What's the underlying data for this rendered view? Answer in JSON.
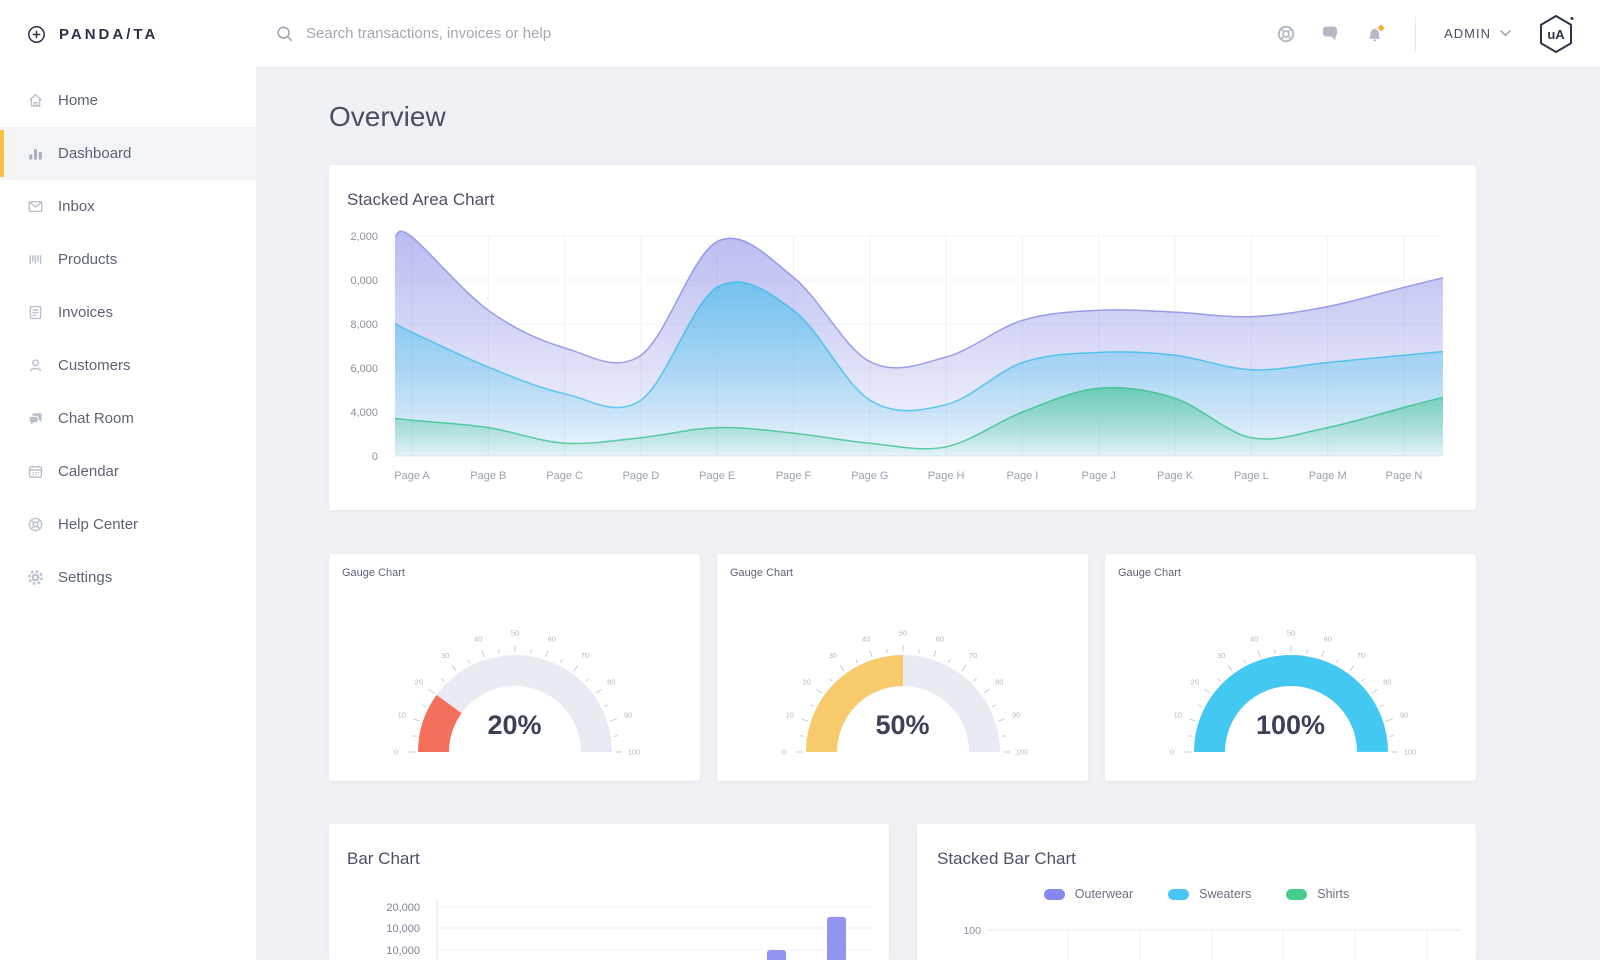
{
  "brand": {
    "name": "PANDA/TA"
  },
  "topbar": {
    "search_placeholder": "Search transactions, invoices or help",
    "icons": [
      "lifebuoy-icon",
      "chat-icon",
      "bell-icon"
    ],
    "notification_badge": true,
    "user_label": "ADMIN",
    "avatar_text": "uA"
  },
  "sidebar": {
    "items": [
      {
        "id": "home",
        "label": "Home",
        "icon": "home",
        "active": false
      },
      {
        "id": "dashboard",
        "label": "Dashboard",
        "icon": "dashboard",
        "active": true
      },
      {
        "id": "inbox",
        "label": "Inbox",
        "icon": "inbox",
        "active": false
      },
      {
        "id": "products",
        "label": "Products",
        "icon": "products",
        "active": false
      },
      {
        "id": "invoices",
        "label": "Invoices",
        "icon": "invoices",
        "active": false
      },
      {
        "id": "customers",
        "label": "Customers",
        "icon": "customers",
        "active": false
      },
      {
        "id": "chat-room",
        "label": "Chat Room",
        "icon": "chat-room",
        "active": false
      },
      {
        "id": "calendar",
        "label": "Calendar",
        "icon": "calendar",
        "active": false
      },
      {
        "id": "help-center",
        "label": "Help Center",
        "icon": "help-center",
        "active": false
      },
      {
        "id": "settings",
        "label": "Settings",
        "icon": "settings",
        "active": false
      }
    ]
  },
  "page": {
    "title": "Overview"
  },
  "colors": {
    "accent_yellow": "#f6c13c",
    "notification_dot": "#f5ab3f",
    "gauge_track": "#e9ebf3",
    "gauge_red": "#f4705d",
    "gauge_amber": "#f7ca6b",
    "gauge_cyan": "#43c8f1",
    "area_purple": "#7f84e3",
    "area_blue": "#2fbcea",
    "area_green": "#2fbf86",
    "bar_purple": "#9195f1"
  },
  "chart_data": [
    {
      "card": "stacked-area",
      "type": "area",
      "title": "Stacked Area Chart",
      "stacked": true,
      "grid": true,
      "ylim": [
        0,
        12000
      ],
      "y_tick_labels_visible": [
        "2,000",
        "0,000",
        "8,000",
        "6,000",
        "4,000",
        "0"
      ],
      "x_labels": [
        "Page A",
        "Page B",
        "Page C",
        "Page D",
        "Page E",
        "Page F",
        "Page G",
        "Page H",
        "Page I",
        "Page J",
        "Page K",
        "Page L",
        "Page M",
        "Page N"
      ],
      "series": [
        {
          "name": "green",
          "color": "#2fbf86",
          "values": [
            1950,
            1550,
            700,
            1000,
            1550,
            1250,
            700,
            500,
            2400,
            3700,
            3150,
            1000,
            1550,
            2650
          ]
        },
        {
          "name": "blue",
          "color": "#2fbcea",
          "values": [
            4800,
            3300,
            2700,
            2050,
            7650,
            6700,
            2350,
            2300,
            2700,
            1950,
            2350,
            3700,
            3550,
            2850
          ]
        },
        {
          "name": "purple",
          "color": "#7f84e3",
          "values": [
            5200,
            3100,
            2500,
            2450,
            2500,
            1800,
            2100,
            2600,
            2300,
            2300,
            2350,
            2900,
            3050,
            3700
          ]
        }
      ]
    },
    {
      "card": "gauge-1",
      "type": "gauge",
      "title": "Gauge Chart",
      "value": 20,
      "label": "20%",
      "min": 0,
      "max": 100,
      "tick_step": 10,
      "color": "#f4705d"
    },
    {
      "card": "gauge-2",
      "type": "gauge",
      "title": "Gauge Chart",
      "value": 50,
      "label": "50%",
      "min": 0,
      "max": 100,
      "tick_step": 10,
      "color": "#f7ca6b"
    },
    {
      "card": "gauge-3",
      "type": "gauge",
      "title": "Gauge Chart",
      "value": 100,
      "label": "100%",
      "min": 0,
      "max": 100,
      "tick_step": 10,
      "color": "#43c8f1"
    },
    {
      "card": "bar",
      "type": "bar",
      "title": "Bar Chart",
      "y_tick_labels_visible": [
        "20,000",
        "10,000",
        "10,000"
      ],
      "bar_color": "#9195f1",
      "visible_values": [
        10000,
        17700
      ]
    },
    {
      "card": "stacked-bar",
      "type": "bar",
      "stacked": true,
      "title": "Stacked Bar Chart",
      "legend": [
        {
          "name": "Outerwear",
          "color": "#8589ee"
        },
        {
          "name": "Sweaters",
          "color": "#49c5f2"
        },
        {
          "name": "Shirts",
          "color": "#46cd8d"
        }
      ],
      "y_tick_labels_visible": [
        "100"
      ]
    }
  ]
}
